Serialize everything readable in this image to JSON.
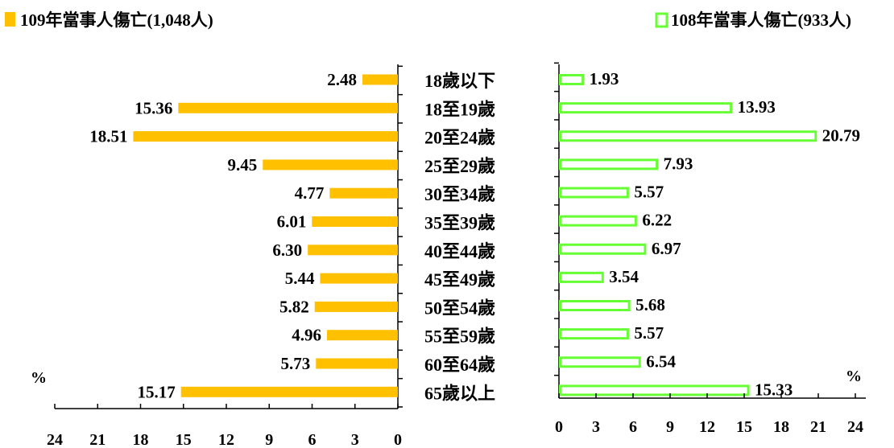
{
  "chart_data": [
    {
      "type": "bar",
      "orientation": "horizontal",
      "direction": "right-to-left",
      "categories": [
        "18歲以下",
        "18至19歲",
        "20至24歲",
        "25至29歲",
        "30至34歲",
        "35至39歲",
        "40至44歲",
        "45至49歲",
        "50至54歲",
        "55至59歲",
        "60至64歲",
        "65歲以上"
      ],
      "series": [
        {
          "name": "109年當事人傷亡(1,048人)",
          "color": "#FFC000",
          "values": [
            2.48,
            15.36,
            18.51,
            9.45,
            4.77,
            6.01,
            6.3,
            5.44,
            5.82,
            4.96,
            5.73,
            15.17
          ],
          "labels": [
            "2.48",
            "15.36",
            "18.51",
            "9.45",
            "4.77",
            "6.01",
            "6.30",
            "5.44",
            "5.82",
            "4.96",
            "5.73",
            "15.17"
          ]
        }
      ],
      "xlim": [
        0,
        24
      ],
      "ticks": [
        "0",
        "3",
        "6",
        "9",
        "12",
        "15",
        "18",
        "21",
        "24"
      ],
      "unit_label": "%",
      "legend_position": "top-left"
    },
    {
      "type": "bar",
      "orientation": "horizontal",
      "direction": "left-to-right",
      "style": "outline",
      "categories": [
        "18歲以下",
        "18至19歲",
        "20至24歲",
        "25至29歲",
        "30至34歲",
        "35至39歲",
        "40至44歲",
        "45至49歲",
        "50至54歲",
        "55至59歲",
        "60至64歲",
        "65歲以上"
      ],
      "series": [
        {
          "name": "108年當事人傷亡(933人)",
          "color": "#66FF33",
          "values": [
            1.93,
            13.93,
            20.79,
            7.93,
            5.57,
            6.22,
            6.97,
            3.54,
            5.68,
            5.57,
            6.54,
            15.33
          ],
          "labels": [
            "1.93",
            "13.93",
            "20.79",
            "7.93",
            "5.57",
            "6.22",
            "6.97",
            "3.54",
            "5.68",
            "5.57",
            "6.54",
            "15.33"
          ]
        }
      ],
      "xlim": [
        0,
        24
      ],
      "ticks": [
        "0",
        "3",
        "6",
        "9",
        "12",
        "15",
        "18",
        "21",
        "24"
      ],
      "unit_label": "%",
      "legend_position": "top-right"
    }
  ]
}
